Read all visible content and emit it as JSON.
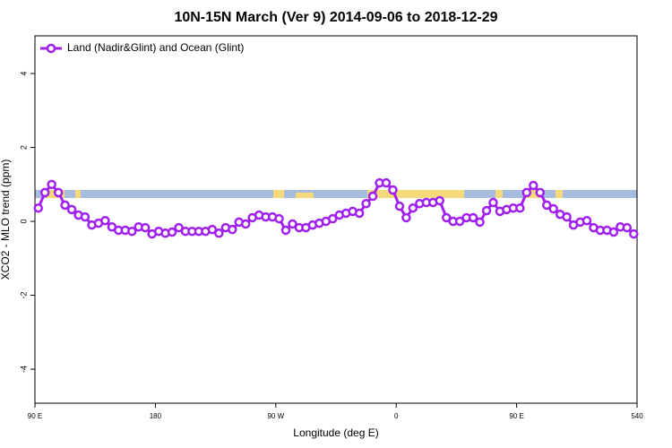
{
  "chart_data": {
    "type": "line",
    "title": "10N-15N March (Ver 9)   2014-09-06 to 2018-12-29",
    "x_label": "Longitude (deg E)",
    "y_label": "XCO2 - MLO trend (ppm)",
    "x": [
      92.5,
      97.5,
      102.5,
      107.5,
      112.5,
      117.5,
      122.5,
      127.5,
      132.5,
      137.5,
      142.5,
      147.5,
      152.5,
      157.5,
      162.5,
      167.5,
      172.5,
      177.5,
      182.5,
      187.5,
      192.5,
      197.5,
      202.5,
      207.5,
      212.5,
      217.5,
      222.5,
      227.5,
      232.5,
      237.5,
      242.5,
      247.5,
      252.5,
      257.5,
      262.5,
      267.5,
      272.5,
      277.5,
      282.5,
      287.5,
      292.5,
      297.5,
      302.5,
      307.5,
      312.5,
      317.5,
      322.5,
      327.5,
      332.5,
      337.5,
      342.5,
      347.5,
      352.5,
      357.5,
      362.5,
      367.5,
      372.5,
      377.5,
      382.5,
      387.5,
      392.5,
      397.5,
      402.5,
      407.5,
      412.5,
      417.5,
      422.5,
      427.5,
      432.5,
      437.5,
      442.5,
      447.5,
      452.5,
      457.5,
      462.5,
      467.5,
      472.5,
      477.5,
      482.5,
      487.5,
      492.5,
      497.5,
      502.5,
      507.5,
      512.5,
      517.5,
      522.5,
      527.5,
      532.5,
      537.5
    ],
    "series": [
      {
        "name": "Land (Nadir&Glint) and Ocean (Glint)",
        "color": "#a020f0",
        "values": [
          0.36,
          0.78,
          1.0,
          0.78,
          0.44,
          0.32,
          0.17,
          0.12,
          -0.1,
          -0.05,
          0.02,
          -0.15,
          -0.24,
          -0.24,
          -0.27,
          -0.15,
          -0.17,
          -0.34,
          -0.27,
          -0.32,
          -0.29,
          -0.17,
          -0.27,
          -0.27,
          -0.27,
          -0.27,
          -0.22,
          -0.32,
          -0.17,
          -0.22,
          -0.02,
          -0.07,
          0.1,
          0.17,
          0.12,
          0.12,
          0.07,
          -0.24,
          -0.07,
          -0.17,
          -0.17,
          -0.1,
          -0.05,
          0,
          0.07,
          0.17,
          0.22,
          0.27,
          0.22,
          0.48,
          0.68,
          1.04,
          1.04,
          0.85,
          0.41,
          0.1,
          0.36,
          0.48,
          0.51,
          0.51,
          0.56,
          0.1,
          0,
          0,
          0.1,
          0.1,
          -0.02,
          0.29,
          0.51,
          0.27,
          0.32,
          0.36,
          0.36,
          0.78,
          0.97,
          0.78,
          0.44,
          0.34,
          0.19,
          0.12,
          -0.1,
          -0.02,
          0.02,
          -0.17,
          -0.24,
          -0.24,
          -0.29,
          -0.15,
          -0.17,
          -0.34
        ]
      }
    ],
    "xlim": [
      90,
      540
    ],
    "xticks": [
      {
        "value": 90,
        "label": "90 E"
      },
      180,
      {
        "value": 270,
        "label": "90 W"
      },
      {
        "value": 360,
        "label": "0"
      },
      {
        "value": 450,
        "label": "90 E"
      },
      540
    ],
    "ylim": [
      -4.92,
      5.02
    ],
    "yticks": [
      -4,
      -2,
      0,
      2,
      4
    ],
    "legend": "top-left"
  }
}
